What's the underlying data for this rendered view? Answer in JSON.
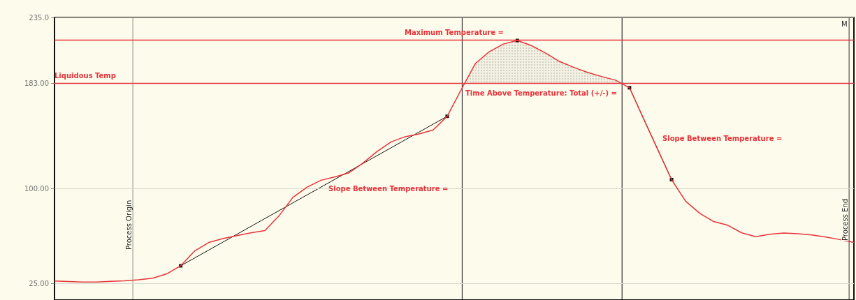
{
  "chart_data": {
    "type": "line",
    "categories": [
      null,
      null,
      null,
      null,
      null,
      null,
      null,
      null,
      null,
      null,
      null,
      null,
      null,
      null,
      null,
      null,
      null,
      null,
      null,
      null,
      null,
      null,
      null,
      null,
      null,
      null,
      null,
      null,
      null,
      null,
      null,
      null,
      null,
      null,
      null,
      null,
      null,
      null,
      null,
      null,
      null,
      null,
      null,
      null,
      null,
      null,
      null,
      null,
      null,
      null,
      null,
      null,
      null,
      null,
      null,
      null,
      null,
      null
    ],
    "series": [
      {
        "color": "#e8333a",
        "values": [
          27,
          26.6,
          26.2,
          26.2,
          26.7,
          27.2,
          28,
          29.2,
          32.6,
          39,
          50.8,
          57.4,
          60.4,
          62.8,
          65,
          66.8,
          78.3,
          93,
          101,
          106.5,
          109.2,
          112.4,
          120.1,
          129.2,
          136.8,
          140.9,
          143,
          146.2,
          157,
          178,
          198.5,
          208,
          214,
          216.8,
          212.8,
          207,
          200.3,
          195.7,
          191.6,
          188.4,
          185.5,
          179.5,
          155,
          131,
          107,
          90,
          80.5,
          73.9,
          71,
          65,
          62,
          63.9,
          64.8,
          64.3,
          63.4,
          61.7,
          59.7,
          57.4
        ]
      }
    ],
    "ylim": [
      12,
      235
    ],
    "yticks": [
      {
        "value": 235,
        "label": "235.0"
      },
      {
        "value": 183,
        "label": "183.00"
      },
      {
        "value": 100,
        "label": "100.00"
      },
      {
        "value": 25,
        "label": "25.00"
      }
    ],
    "tick_labels": "y",
    "grid": "y",
    "marker": "none",
    "line_style": "solid",
    "ref_lines": [
      {
        "axis": "y",
        "value": 217,
        "label": "Maximum Temperature =",
        "color": "#e8333a"
      },
      {
        "axis": "y",
        "value": 183,
        "label": "Liquidous Temp",
        "color": "#e8333a"
      }
    ],
    "annotations": [
      "Time Above Temperature: Total (+/-) =",
      "Slope Between Temperature =",
      "Slope Between Temperature =",
      "M",
      "Process Origin",
      "Process End"
    ]
  }
}
